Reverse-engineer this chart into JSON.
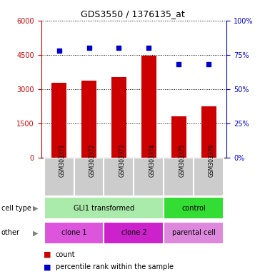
{
  "title": "GDS3550 / 1376135_at",
  "samples": [
    "GSM303371",
    "GSM303372",
    "GSM303373",
    "GSM303374",
    "GSM303375",
    "GSM303376"
  ],
  "counts": [
    3280,
    3360,
    3520,
    4450,
    1820,
    2230
  ],
  "percentiles": [
    78,
    80,
    80,
    80,
    68,
    68
  ],
  "left_ylim": [
    0,
    6000
  ],
  "left_yticks": [
    0,
    1500,
    3000,
    4500,
    6000
  ],
  "right_ylim": [
    0,
    100
  ],
  "right_yticks": [
    0,
    25,
    50,
    75,
    100
  ],
  "bar_color": "#cc0000",
  "dot_color": "#0000cc",
  "bar_width": 0.5,
  "cell_type_groups": [
    {
      "label": "GLI1 transformed",
      "samples": [
        0,
        1,
        2,
        3
      ],
      "color": "#aaeaaa"
    },
    {
      "label": "control",
      "samples": [
        4,
        5
      ],
      "color": "#33dd33"
    }
  ],
  "other_groups": [
    {
      "label": "clone 1",
      "samples": [
        0,
        1
      ],
      "color": "#dd55dd"
    },
    {
      "label": "clone 2",
      "samples": [
        2,
        3
      ],
      "color": "#cc22cc"
    },
    {
      "label": "parental cell",
      "samples": [
        4,
        5
      ],
      "color": "#dd88dd"
    }
  ],
  "sample_box_color": "#cccccc",
  "tick_label_color_left": "#cc0000",
  "tick_label_color_right": "#0000cc",
  "bg_color": "#ffffff"
}
